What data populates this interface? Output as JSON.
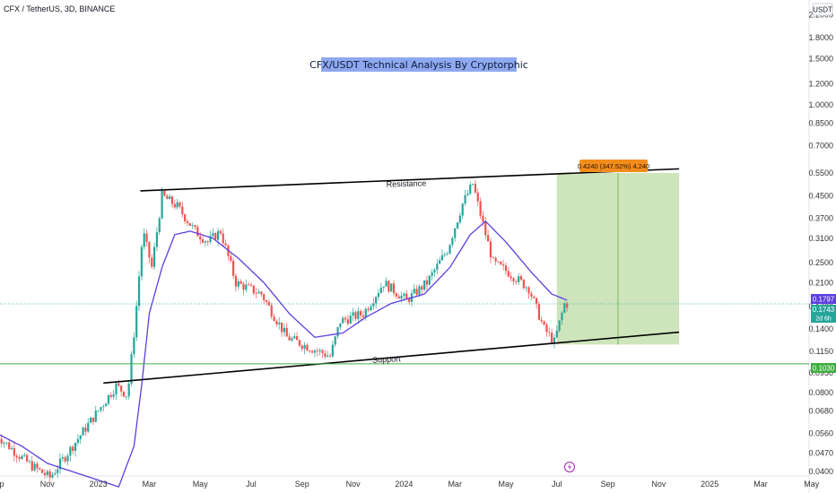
{
  "header": {
    "symbol_line": "CFX / TetherUS, 3D, BINANCE"
  },
  "chart_title": "CFX/USDT Technical Analysis By Cryptorphic",
  "currency_badge": "USDT",
  "annotations": {
    "resistance_label": "Resistance",
    "support_label": "Support",
    "target_label": "0.4240 (347.52%) 4,240"
  },
  "price_tags": {
    "ma_value": "0.1797",
    "last_price": "0.1743",
    "countdown": "2d 6h",
    "support_line_value": "0.1030"
  },
  "colors": {
    "up": "#26a69a",
    "down": "#ef5350",
    "ma": "#5b3fe0",
    "target_zone": "#c5e1b0",
    "horizontal_line": "#3fae3f",
    "title_bg": "#8fa9f0",
    "target_label_bg": "#f28c1b"
  },
  "chart_data": {
    "type": "candlestick",
    "y_scale": "log",
    "ylim": [
      0.04,
      2.4
    ],
    "y_ticks": [
      0.04,
      0.047,
      0.056,
      0.068,
      0.08,
      0.095,
      0.115,
      0.14,
      0.17,
      0.21,
      0.25,
      0.31,
      0.37,
      0.45,
      0.55,
      0.7,
      0.85,
      1.0,
      1.2,
      1.5,
      1.8,
      2.2
    ],
    "y_tick_labels": [
      "0.0400",
      "0.0470",
      "0.0560",
      "0.0680",
      "0.0800",
      "0.0950",
      "0.1150",
      "0.1400",
      "0.1700",
      "0.2100",
      "0.2500",
      "0.3100",
      "0.3700",
      "0.4500",
      "0.5500",
      "0.7000",
      "0.8500",
      "1.0000",
      "1.2000",
      "1.5000",
      "1.8000",
      "2.2000"
    ],
    "x_ticks": [
      "p",
      "Nov",
      "2023",
      "Mar",
      "May",
      "Jul",
      "Sep",
      "Nov",
      "2024",
      "Mar",
      "May",
      "Jul",
      "Sep",
      "Nov",
      "2025",
      "Mar",
      "May"
    ],
    "x_tick_months": [
      0,
      2,
      4,
      6,
      8,
      10,
      12,
      14,
      16,
      18,
      20,
      22,
      24,
      26,
      28,
      30,
      32
    ],
    "anchors": [
      {
        "m": 0.0,
        "p": 0.057
      },
      {
        "m": 0.4,
        "p": 0.052
      },
      {
        "m": 1.0,
        "p": 0.046
      },
      {
        "m": 1.5,
        "p": 0.042
      },
      {
        "m": 2.2,
        "p": 0.038
      },
      {
        "m": 4.8,
        "p": 0.085
      },
      {
        "m": 5.25,
        "p": 0.078
      },
      {
        "m": 5.55,
        "p": 0.15
      },
      {
        "m": 5.85,
        "p": 0.33
      },
      {
        "m": 6.2,
        "p": 0.24
      },
      {
        "m": 6.6,
        "p": 0.45
      },
      {
        "m": 7.2,
        "p": 0.41
      },
      {
        "m": 7.9,
        "p": 0.33
      },
      {
        "m": 8.4,
        "p": 0.3
      },
      {
        "m": 8.9,
        "p": 0.33
      },
      {
        "m": 9.5,
        "p": 0.21
      },
      {
        "m": 10.5,
        "p": 0.19
      },
      {
        "m": 11.5,
        "p": 0.13
      },
      {
        "m": 12.3,
        "p": 0.12
      },
      {
        "m": 13.2,
        "p": 0.11
      },
      {
        "m": 13.6,
        "p": 0.15
      },
      {
        "m": 14.5,
        "p": 0.16
      },
      {
        "m": 15.3,
        "p": 0.21
      },
      {
        "m": 16.2,
        "p": 0.18
      },
      {
        "m": 17.0,
        "p": 0.21
      },
      {
        "m": 17.8,
        "p": 0.28
      },
      {
        "m": 18.4,
        "p": 0.42
      },
      {
        "m": 18.8,
        "p": 0.5
      },
      {
        "m": 19.2,
        "p": 0.35
      },
      {
        "m": 19.6,
        "p": 0.25
      },
      {
        "m": 20.2,
        "p": 0.23
      },
      {
        "m": 21.0,
        "p": 0.2
      },
      {
        "m": 21.6,
        "p": 0.14
      },
      {
        "m": 22.0,
        "p": 0.125
      },
      {
        "m": 22.4,
        "p": 0.174
      }
    ],
    "ma_points": [
      {
        "m": 0.0,
        "p": 0.056
      },
      {
        "m": 1.0,
        "p": 0.05
      },
      {
        "m": 2.0,
        "p": 0.043
      },
      {
        "m": 4.8,
        "p": 0.035
      },
      {
        "m": 5.4,
        "p": 0.05
      },
      {
        "m": 5.7,
        "p": 0.085
      },
      {
        "m": 6.0,
        "p": 0.16
      },
      {
        "m": 6.5,
        "p": 0.24
      },
      {
        "m": 7.0,
        "p": 0.32
      },
      {
        "m": 7.6,
        "p": 0.33
      },
      {
        "m": 8.5,
        "p": 0.31
      },
      {
        "m": 9.5,
        "p": 0.26
      },
      {
        "m": 10.5,
        "p": 0.21
      },
      {
        "m": 11.5,
        "p": 0.16
      },
      {
        "m": 12.5,
        "p": 0.13
      },
      {
        "m": 13.6,
        "p": 0.135
      },
      {
        "m": 14.5,
        "p": 0.155
      },
      {
        "m": 15.5,
        "p": 0.175
      },
      {
        "m": 16.8,
        "p": 0.19
      },
      {
        "m": 17.8,
        "p": 0.24
      },
      {
        "m": 18.6,
        "p": 0.32
      },
      {
        "m": 19.2,
        "p": 0.36
      },
      {
        "m": 20.0,
        "p": 0.3
      },
      {
        "m": 21.0,
        "p": 0.23
      },
      {
        "m": 21.8,
        "p": 0.19
      },
      {
        "m": 22.4,
        "p": 0.18
      }
    ],
    "resistance_line": [
      {
        "m": 5.65,
        "p": 0.47
      },
      {
        "m": 26.8,
        "p": 0.57
      }
    ],
    "support_line": [
      {
        "m": 4.2,
        "p": 0.087
      },
      {
        "m": 26.8,
        "p": 0.136
      }
    ],
    "horizontal_line": 0.103,
    "current_price": 0.1743,
    "target_zone": {
      "m_start": 22.0,
      "m_end": 26.8,
      "p_low": 0.122,
      "p_high": 0.55,
      "target": 0.55
    }
  }
}
